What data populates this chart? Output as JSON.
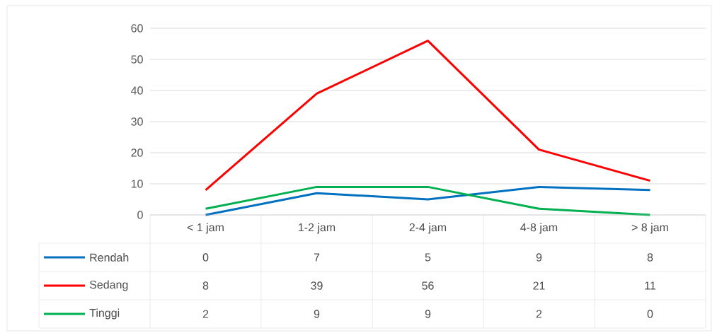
{
  "chart_data": {
    "type": "line",
    "categories": [
      "< 1 jam",
      "1-2 jam",
      "2-4 jam",
      "4-8 jam",
      "> 8 jam"
    ],
    "series": [
      {
        "name": "Rendah",
        "color": "#0070c0",
        "values": [
          0,
          7,
          5,
          9,
          8
        ]
      },
      {
        "name": "Sedang",
        "color": "#ff0000",
        "values": [
          8,
          39,
          56,
          21,
          11
        ]
      },
      {
        "name": "Tinggi",
        "color": "#00b050",
        "values": [
          2,
          9,
          9,
          2,
          0
        ]
      }
    ],
    "ylim": [
      0,
      60
    ],
    "yticks": [
      0,
      10,
      20,
      30,
      40,
      50,
      60
    ],
    "grid": "y",
    "data_labels": true,
    "legend": "bottom"
  }
}
